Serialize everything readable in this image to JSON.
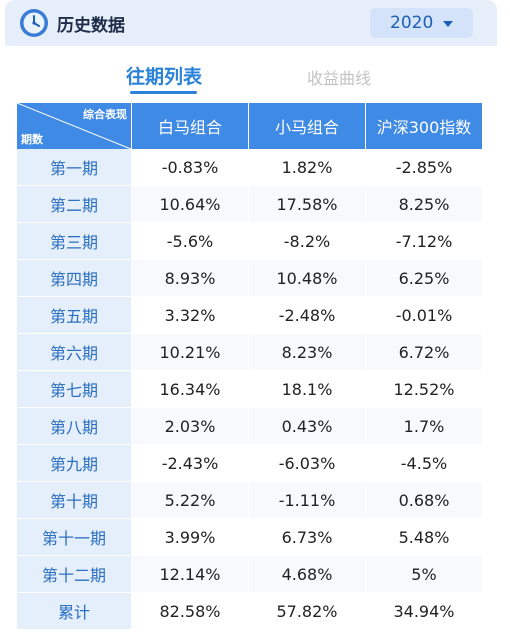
{
  "header": {
    "title": "历史数据",
    "year_selected": "2020",
    "icon": "clock-icon"
  },
  "tabs": {
    "active": "往期列表",
    "inactive": "收益曲线"
  },
  "table": {
    "corner_top": "综合表现",
    "corner_bottom": "期数",
    "columns": [
      "白马组合",
      "小马组合",
      "沪深300指数"
    ],
    "rows": [
      {
        "period": "第一期",
        "values": [
          "-0.83%",
          "1.82%",
          "-2.85%"
        ]
      },
      {
        "period": "第二期",
        "values": [
          "10.64%",
          "17.58%",
          "8.25%"
        ]
      },
      {
        "period": "第三期",
        "values": [
          "-5.6%",
          "-8.2%",
          "-7.12%"
        ]
      },
      {
        "period": "第四期",
        "values": [
          "8.93%",
          "10.48%",
          "6.25%"
        ]
      },
      {
        "period": "第五期",
        "values": [
          "3.32%",
          "-2.48%",
          "-0.01%"
        ]
      },
      {
        "period": "第六期",
        "values": [
          "10.21%",
          "8.23%",
          "6.72%"
        ]
      },
      {
        "period": "第七期",
        "values": [
          "16.34%",
          "18.1%",
          "12.52%"
        ]
      },
      {
        "period": "第八期",
        "values": [
          "2.03%",
          "0.43%",
          "1.7%"
        ]
      },
      {
        "period": "第九期",
        "values": [
          "-2.43%",
          "-6.03%",
          "-4.5%"
        ]
      },
      {
        "period": "第十期",
        "values": [
          "5.22%",
          "-1.11%",
          "0.68%"
        ]
      },
      {
        "period": "第十一期",
        "values": [
          "3.99%",
          "6.73%",
          "5.48%"
        ]
      },
      {
        "period": "第十二期",
        "values": [
          "12.14%",
          "4.68%",
          "5%"
        ]
      },
      {
        "period": "累计",
        "values": [
          "82.58%",
          "57.82%",
          "34.94%"
        ]
      }
    ]
  },
  "colors": {
    "header_bg": "#e6eefa",
    "accent": "#2b82d9",
    "table_header": "#3f8ae4",
    "period_cell": "#e5eefb"
  }
}
